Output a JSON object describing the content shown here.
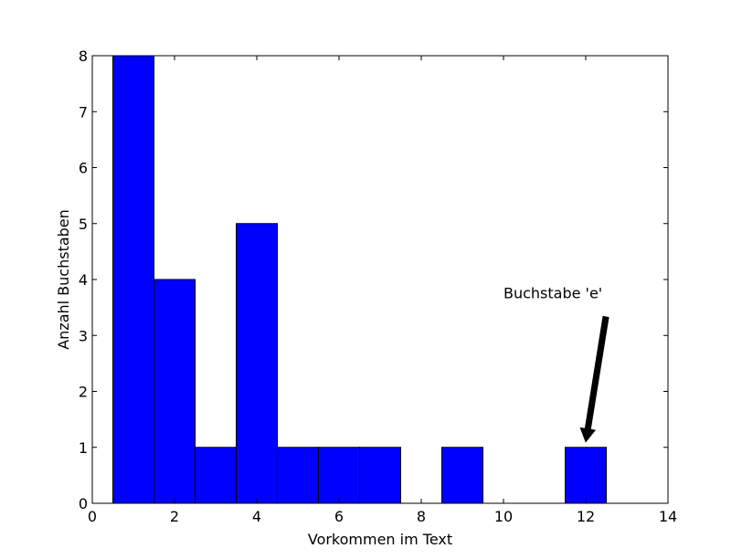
{
  "chart_data": {
    "type": "bar",
    "title": "",
    "xlabel": "Vorkommen im Text",
    "ylabel": "Anzahl Buchstaben",
    "xlim": [
      0,
      14
    ],
    "ylim": [
      0,
      8
    ],
    "xticks": [
      0,
      2,
      4,
      6,
      8,
      10,
      12,
      14
    ],
    "yticks": [
      0,
      1,
      2,
      3,
      4,
      5,
      6,
      7,
      8
    ],
    "bin_width": 1,
    "bars": [
      {
        "x": 1,
        "value": 8
      },
      {
        "x": 2,
        "value": 4
      },
      {
        "x": 3,
        "value": 1
      },
      {
        "x": 4,
        "value": 5
      },
      {
        "x": 5,
        "value": 1
      },
      {
        "x": 6,
        "value": 1
      },
      {
        "x": 7,
        "value": 1
      },
      {
        "x": 9,
        "value": 1
      },
      {
        "x": 12,
        "value": 1
      }
    ],
    "bar_color": "#0000ff",
    "edge_color": "#000000",
    "grid": false,
    "annotation": {
      "text": "Buchstabe 'e'",
      "text_at": [
        10,
        3.5
      ],
      "arrow_tip": [
        12,
        1.1
      ]
    }
  }
}
